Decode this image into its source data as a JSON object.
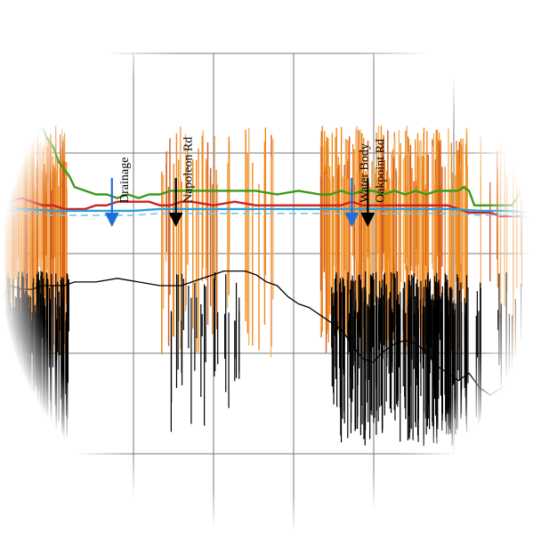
{
  "chart_data": {
    "type": "line",
    "title": "",
    "xlabel": "",
    "ylabel": "",
    "grid": true,
    "legend": "none",
    "x_range": [
      0,
      100
    ],
    "y_range": [
      0,
      100
    ],
    "annotations": [
      {
        "label": "Drainage",
        "x": 21,
        "arrow_color": "#1f6fd6"
      },
      {
        "label": "Napoleon Rd",
        "x": 33,
        "arrow_color": "#000000"
      },
      {
        "label": "Water Body",
        "x": 66,
        "arrow_color": "#1f6fd6"
      },
      {
        "label": "Oakpoint Rd",
        "x": 69,
        "arrow_color": "#000000"
      }
    ],
    "series": [
      {
        "color": "#3a9a1a",
        "x": [
          0,
          1,
          2,
          4,
          6,
          8,
          9,
          10,
          11,
          12,
          13,
          14,
          16,
          18,
          20,
          22,
          24,
          26,
          28,
          30,
          32,
          34,
          36,
          40,
          44,
          48,
          52,
          56,
          60,
          62,
          64,
          66,
          68,
          70,
          72,
          74,
          76,
          78,
          80,
          82,
          84,
          86,
          87,
          88,
          89,
          90,
          92,
          94,
          96,
          97,
          98,
          99,
          100
        ],
        "y": [
          31,
          34,
          33,
          35,
          32,
          33,
          30,
          28,
          24,
          22,
          20,
          17,
          16,
          15,
          15,
          14,
          15,
          14,
          15,
          15,
          16,
          16,
          16,
          16,
          16,
          16,
          15,
          16,
          15,
          15,
          16,
          15,
          16,
          16,
          15,
          16,
          15,
          16,
          15,
          16,
          16,
          16,
          17,
          16,
          12,
          12,
          12,
          12,
          12,
          14,
          18,
          24,
          28
        ]
      },
      {
        "color": "#cc2222",
        "x": [
          0,
          2,
          4,
          6,
          8,
          10,
          12,
          14,
          16,
          18,
          20,
          22,
          24,
          26,
          28,
          30,
          32,
          34,
          36,
          40,
          44,
          48,
          52,
          56,
          60,
          64,
          66,
          68,
          70,
          72,
          76,
          80,
          84,
          86,
          88,
          90,
          92,
          94,
          96,
          98,
          100
        ],
        "y": [
          12,
          13,
          14,
          13,
          12,
          12,
          11,
          11,
          11,
          12,
          12,
          13,
          13,
          13,
          13,
          12,
          12,
          13,
          13,
          12,
          13,
          12,
          12,
          12,
          12,
          12,
          13,
          12,
          12,
          12,
          12,
          12,
          12,
          11,
          10,
          10,
          10,
          9,
          9,
          9,
          8
        ]
      },
      {
        "color": "#2f9fd8",
        "x": [
          0,
          5,
          10,
          15,
          20,
          25,
          30,
          35,
          40,
          45,
          50,
          55,
          60,
          65,
          70,
          75,
          80,
          85,
          90,
          95,
          100
        ],
        "y": [
          11,
          11,
          10.5,
          10.5,
          10.5,
          10.5,
          11,
          11,
          11,
          11,
          11,
          11,
          11,
          11,
          11,
          11,
          11,
          11,
          10.5,
          10.5,
          10
        ]
      },
      {
        "color": "#000000",
        "x": [
          0,
          2,
          4,
          6,
          8,
          10,
          12,
          14,
          18,
          22,
          26,
          30,
          34,
          36,
          38,
          40,
          42,
          44,
          46,
          48,
          50,
          52,
          54,
          56,
          58,
          60,
          62,
          64,
          66,
          68,
          70,
          72,
          74,
          76,
          78,
          80,
          82,
          84,
          86,
          88,
          90,
          92,
          94,
          96,
          98,
          100
        ],
        "y": [
          -14,
          -10,
          -11,
          -11,
          -10,
          -10,
          -10,
          -9,
          -9,
          -8,
          -9,
          -10,
          -10,
          -9,
          -8,
          -7,
          -6,
          -6,
          -6,
          -7,
          -9,
          -10,
          -13,
          -15,
          -16,
          -18,
          -20,
          -22,
          -26,
          -30,
          -31,
          -28,
          -26,
          -25,
          -26,
          -28,
          -32,
          -34,
          -36,
          -34,
          -38,
          -40,
          -38,
          -36,
          -38,
          -40
        ]
      }
    ]
  }
}
